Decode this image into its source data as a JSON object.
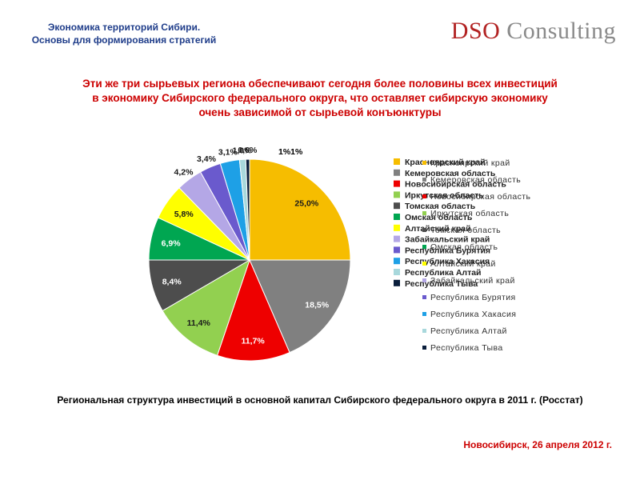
{
  "header": {
    "line1": "Экономика территорий Сибири.",
    "line2": "Основы для формирования стратегий"
  },
  "logo": {
    "brand": "DSO",
    "word": "Consulting"
  },
  "headline": {
    "line1": "Эти же три сырьевых региона обеспечивают сегодня более половины всех инвестиций",
    "line2": "в экономику Сибирского федерального округа, что оставляет сибирскую экономику",
    "line3": "очень зависимой от сырьевой конъюнктуры"
  },
  "chart_data": {
    "type": "pie",
    "slices": [
      {
        "name": "Красноярский край",
        "value": 25.0,
        "label": "25,0%",
        "color": "#f6bd00"
      },
      {
        "name": "Кемеровская область",
        "value": 18.5,
        "label": "18,5%",
        "color": "#808080"
      },
      {
        "name": "Новосибирская область",
        "value": 11.7,
        "label": "11,7%",
        "color": "#ee0000"
      },
      {
        "name": "Иркутская область",
        "value": 11.4,
        "label": "11,4%",
        "color": "#92d050"
      },
      {
        "name": "Томская область",
        "value": 8.4,
        "label": "8,4%",
        "color": "#4d4d4d"
      },
      {
        "name": "Омская область",
        "value": 6.9,
        "label": "6,9%",
        "color": "#00a651"
      },
      {
        "name": "Алтайский край",
        "value": 5.8,
        "label": "5,8%",
        "color": "#ffff00"
      },
      {
        "name": "Забайкальский край",
        "value": 4.2,
        "label": "4,2%",
        "color": "#b4a7e6"
      },
      {
        "name": "Республика Бурятия",
        "value": 3.4,
        "label": "3,4%",
        "color": "#6a5acd"
      },
      {
        "name": "Республика Хакасия",
        "value": 3.1,
        "label": "3,1%",
        "color": "#1ea0e6"
      },
      {
        "name": "Республика Алтай",
        "value": 1.0,
        "label": "1,0%",
        "color": "#a8d8dc"
      },
      {
        "name": "Республика Тыва",
        "value": 0.6,
        "label": "0,6%",
        "color": "#0a1e3c"
      }
    ],
    "extra_label": "1%1%",
    "legend_placement": "right"
  },
  "caption": "Региональная структура инвестиций в основной капитал Сибирского федерального округа в 2011 г. (Росстат)",
  "footer": "Новосибирск, 26 апреля 2012 г."
}
